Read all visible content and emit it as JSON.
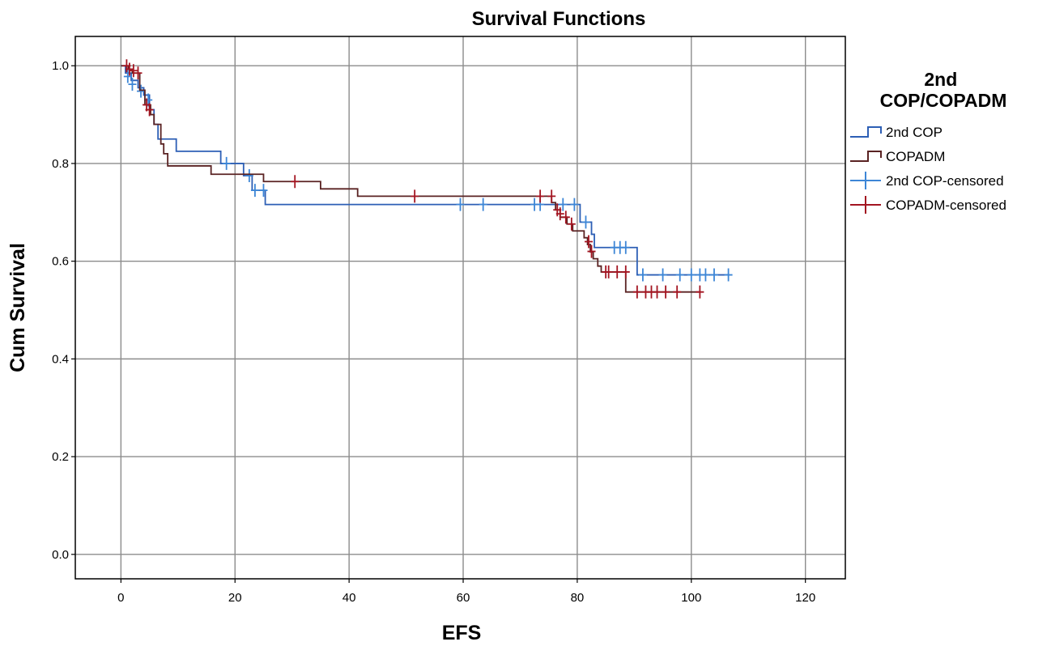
{
  "chart_data": {
    "type": "line",
    "title": "Survival Functions",
    "xlabel": "EFS",
    "ylabel": "Cum Survival",
    "xlim": [
      -8,
      127
    ],
    "ylim": [
      -0.05,
      1.06
    ],
    "xticks": [
      0,
      20,
      40,
      60,
      80,
      100,
      120
    ],
    "yticks": [
      0.0,
      0.2,
      0.4,
      0.6,
      0.8,
      1.0
    ],
    "xtick_labels": [
      "0",
      "20",
      "40",
      "60",
      "80",
      "100",
      "120"
    ],
    "ytick_labels": [
      "0.0",
      "0.2",
      "0.4",
      "0.6",
      "0.8",
      "1.0"
    ],
    "grid": true,
    "legend_title": "2nd\nCOP/COPADM",
    "legend_position": "right",
    "legend_entries": [
      "2nd COP",
      "COPADM",
      "2nd COP-censored",
      "COPADM-censored"
    ],
    "series": [
      {
        "name": "2nd COP",
        "color": "#2d5fb5",
        "censor_color": "#3d86d6",
        "steps": [
          [
            0,
            1.0
          ],
          [
            0.8,
            0.985
          ],
          [
            1.8,
            0.97
          ],
          [
            3.0,
            0.955
          ],
          [
            4.0,
            0.94
          ],
          [
            5.0,
            0.91
          ],
          [
            5.8,
            0.88
          ],
          [
            6.5,
            0.85
          ],
          [
            9.7,
            0.825
          ],
          [
            17.5,
            0.8
          ],
          [
            21.5,
            0.775
          ],
          [
            23.0,
            0.745
          ],
          [
            25.3,
            0.716
          ],
          [
            80.5,
            0.68
          ],
          [
            82.5,
            0.655
          ],
          [
            83.0,
            0.628
          ],
          [
            90.5,
            0.572
          ],
          [
            106.5,
            0.572
          ]
        ],
        "censored": [
          [
            1.2,
            0.978
          ],
          [
            2.0,
            0.962
          ],
          [
            3.5,
            0.948
          ],
          [
            4.8,
            0.93
          ],
          [
            18.5,
            0.8
          ],
          [
            22.5,
            0.775
          ],
          [
            23.5,
            0.745
          ],
          [
            25.0,
            0.745
          ],
          [
            59.5,
            0.716
          ],
          [
            63.5,
            0.716
          ],
          [
            72.5,
            0.716
          ],
          [
            73.5,
            0.716
          ],
          [
            77.5,
            0.716
          ],
          [
            79.5,
            0.716
          ],
          [
            81.5,
            0.68
          ],
          [
            86.5,
            0.628
          ],
          [
            87.5,
            0.628
          ],
          [
            88.5,
            0.628
          ],
          [
            91.5,
            0.572
          ],
          [
            95.0,
            0.572
          ],
          [
            98.0,
            0.572
          ],
          [
            100.0,
            0.572
          ],
          [
            101.5,
            0.572
          ],
          [
            102.5,
            0.572
          ],
          [
            104.0,
            0.572
          ],
          [
            106.5,
            0.572
          ]
        ]
      },
      {
        "name": "COPADM",
        "color": "#5a2323",
        "censor_color": "#a31521",
        "steps": [
          [
            0,
            1.0
          ],
          [
            1.3,
            0.993
          ],
          [
            2.0,
            0.985
          ],
          [
            3.3,
            0.95
          ],
          [
            4.2,
            0.92
          ],
          [
            5.2,
            0.9
          ],
          [
            5.8,
            0.88
          ],
          [
            7.0,
            0.84
          ],
          [
            7.5,
            0.82
          ],
          [
            8.2,
            0.795
          ],
          [
            15.8,
            0.778
          ],
          [
            25.0,
            0.763
          ],
          [
            35.0,
            0.748
          ],
          [
            41.5,
            0.733
          ],
          [
            75.5,
            0.72
          ],
          [
            76.2,
            0.705
          ],
          [
            77.0,
            0.69
          ],
          [
            78.2,
            0.676
          ],
          [
            79.2,
            0.662
          ],
          [
            81.2,
            0.648
          ],
          [
            81.8,
            0.634
          ],
          [
            82.3,
            0.619
          ],
          [
            82.8,
            0.605
          ],
          [
            83.6,
            0.59
          ],
          [
            84.2,
            0.578
          ],
          [
            88.5,
            0.537
          ],
          [
            101.5,
            0.537
          ]
        ],
        "censored": [
          [
            1.0,
            1.0
          ],
          [
            1.5,
            0.993
          ],
          [
            2.2,
            0.99
          ],
          [
            3.0,
            0.985
          ],
          [
            4.5,
            0.92
          ],
          [
            5.0,
            0.91
          ],
          [
            30.5,
            0.763
          ],
          [
            51.5,
            0.733
          ],
          [
            73.5,
            0.733
          ],
          [
            75.5,
            0.733
          ],
          [
            76.5,
            0.705
          ],
          [
            77.0,
            0.697
          ],
          [
            78.0,
            0.69
          ],
          [
            79.0,
            0.676
          ],
          [
            82.0,
            0.64
          ],
          [
            82.5,
            0.62
          ],
          [
            85.0,
            0.578
          ],
          [
            85.5,
            0.578
          ],
          [
            87.0,
            0.578
          ],
          [
            88.5,
            0.578
          ],
          [
            90.5,
            0.537
          ],
          [
            92.0,
            0.537
          ],
          [
            93.0,
            0.537
          ],
          [
            94.0,
            0.537
          ],
          [
            95.5,
            0.537
          ],
          [
            97.5,
            0.537
          ],
          [
            101.5,
            0.537
          ]
        ]
      }
    ]
  }
}
